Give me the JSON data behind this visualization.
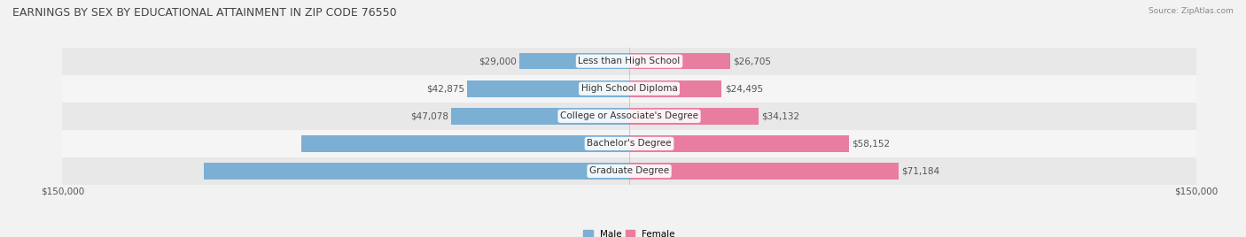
{
  "title": "EARNINGS BY SEX BY EDUCATIONAL ATTAINMENT IN ZIP CODE 76550",
  "source": "Source: ZipAtlas.com",
  "categories": [
    "Graduate Degree",
    "Bachelor's Degree",
    "College or Associate's Degree",
    "High School Diploma",
    "Less than High School"
  ],
  "male_values": [
    112589,
    86705,
    47078,
    42875,
    29000
  ],
  "female_values": [
    71184,
    58152,
    34132,
    24495,
    26705
  ],
  "male_color": "#7BAFD4",
  "female_color": "#E87DA0",
  "max_val": 150000,
  "bar_height": 0.6,
  "bg_color": "#f2f2f2",
  "row_colors": [
    "#e8e8e8",
    "#f5f5f5"
  ],
  "label_fontsize": 7.5,
  "title_fontsize": 9,
  "axis_label_fontsize": 7.5,
  "value_label_inside_threshold": 80000
}
